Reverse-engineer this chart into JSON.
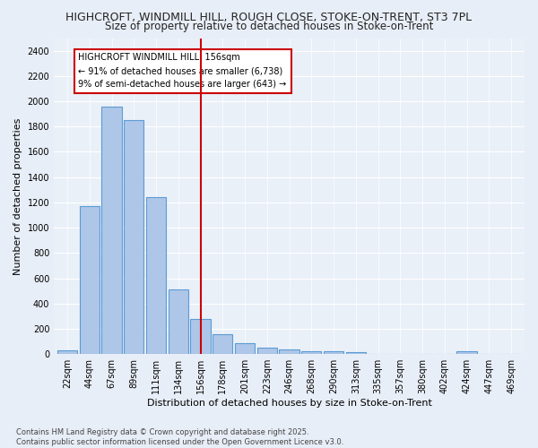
{
  "title1": "HIGHCROFT, WINDMILL HILL, ROUGH CLOSE, STOKE-ON-TRENT, ST3 7PL",
  "title2": "Size of property relative to detached houses in Stoke-on-Trent",
  "xlabel": "Distribution of detached houses by size in Stoke-on-Trent",
  "ylabel": "Number of detached properties",
  "categories": [
    "22sqm",
    "44sqm",
    "67sqm",
    "89sqm",
    "111sqm",
    "134sqm",
    "156sqm",
    "178sqm",
    "201sqm",
    "223sqm",
    "246sqm",
    "268sqm",
    "290sqm",
    "313sqm",
    "335sqm",
    "357sqm",
    "380sqm",
    "402sqm",
    "424sqm",
    "447sqm",
    "469sqm"
  ],
  "values": [
    30,
    1170,
    1960,
    1850,
    1240,
    515,
    275,
    155,
    90,
    50,
    40,
    25,
    20,
    15,
    0,
    0,
    0,
    0,
    20,
    0,
    0
  ],
  "bar_color": "#aec6e8",
  "bar_edge_color": "#5b9bd5",
  "highlight_index": 6,
  "highlight_line_color": "#cc0000",
  "annotation_text": "HIGHCROFT WINDMILL HILL: 156sqm\n← 91% of detached houses are smaller (6,738)\n9% of semi-detached houses are larger (643) →",
  "annotation_box_color": "#ffffff",
  "annotation_box_edge": "#cc0000",
  "ylim": [
    0,
    2500
  ],
  "yticks": [
    0,
    200,
    400,
    600,
    800,
    1000,
    1200,
    1400,
    1600,
    1800,
    2000,
    2200,
    2400
  ],
  "footnote": "Contains HM Land Registry data © Crown copyright and database right 2025.\nContains public sector information licensed under the Open Government Licence v3.0.",
  "bg_color": "#e8eef7",
  "plot_bg_color": "#eaf0f8",
  "grid_color": "#ffffff",
  "title_fontsize": 9,
  "subtitle_fontsize": 8.5,
  "tick_fontsize": 7,
  "label_fontsize": 8,
  "annotation_fontsize": 7,
  "footnote_fontsize": 6
}
